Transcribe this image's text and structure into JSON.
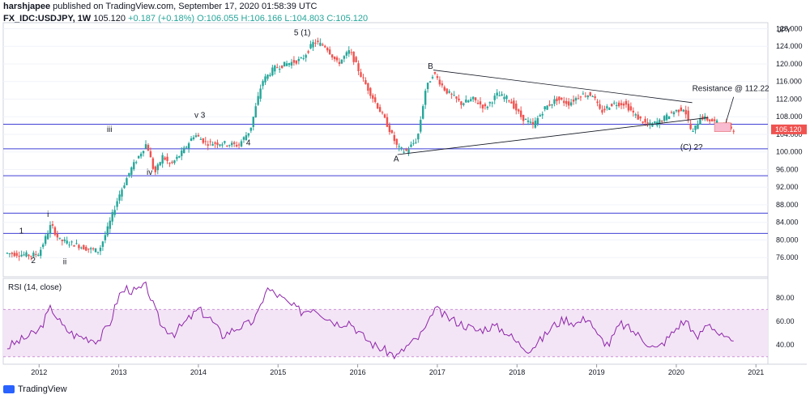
{
  "header": {
    "author": "harshjapee",
    "published": "published on TradingView.com, September 17, 2020 01:58:39 UTC",
    "symbol": "FX_IDC:USDJPY, 1W",
    "last": "105.120",
    "change": "+0.187 (+0.18%)",
    "ohlc": "O:106.055  H:106.166  L:104.803  C:105.120"
  },
  "footer": {
    "brand": "TradingView"
  },
  "colors": {
    "up": "#26a69a",
    "down": "#ef5350",
    "hline": "#3f3fd6",
    "rsi": "#8e24aa",
    "rsi_band": "#f3e5f5"
  },
  "chart_data": [
    {
      "type": "line",
      "title": "",
      "ylabel": "JPY",
      "ylim": [
        72,
        129
      ],
      "yticks": [
        "76.000",
        "80.000",
        "84.000",
        "88.000",
        "92.000",
        "96.000",
        "100.000",
        "104.000",
        "108.000",
        "112.000",
        "116.000",
        "120.000",
        "124.000",
        "128.000"
      ],
      "xticks": [
        "2012",
        "2013",
        "2014",
        "2015",
        "2016",
        "2017",
        "2018",
        "2019",
        "2020",
        "2021"
      ],
      "last_price_label": "105.120",
      "series": [
        {
          "x": [
            2011.6,
            2011.9,
            2012.0,
            2012.15,
            2012.25,
            2012.45,
            2012.6,
            2012.75,
            2012.85,
            2013.0,
            2013.15,
            2013.35,
            2013.45,
            2013.55,
            2013.65,
            2013.8,
            2013.95,
            2014.1,
            2014.3,
            2014.5,
            2014.65,
            2014.8,
            2014.95,
            2015.1,
            2015.3,
            2015.45,
            2015.6,
            2015.75,
            2015.9,
            2016.05,
            2016.2,
            2016.35,
            2016.5,
            2016.6,
            2016.75,
            2016.85,
            2016.95,
            2017.1,
            2017.3,
            2017.45,
            2017.6,
            2017.75,
            2017.9,
            2018.05,
            2018.2,
            2018.35,
            2018.5,
            2018.65,
            2018.8,
            2018.95,
            2019.05,
            2019.2,
            2019.35,
            2019.5,
            2019.65,
            2019.8,
            2019.95,
            2020.1,
            2020.2,
            2020.3,
            2020.45,
            2020.6,
            2020.72
          ],
          "y": [
            77,
            76.5,
            77,
            83.5,
            80,
            79,
            78,
            77.5,
            82,
            90,
            96,
            102,
            95,
            99,
            97,
            100,
            104,
            102,
            102,
            101.5,
            105,
            116,
            119,
            120,
            121,
            125,
            124,
            120,
            123,
            117,
            112,
            107,
            101,
            100,
            103,
            114,
            118,
            114,
            111,
            112,
            110,
            113,
            112,
            108,
            106,
            110,
            112,
            111,
            113,
            113,
            109,
            111,
            111,
            108,
            106,
            107,
            109,
            110,
            104,
            108,
            107,
            106,
            105.1
          ]
        }
      ],
      "hlines": [
        106.3,
        100.7,
        94.6,
        86.1,
        81.5
      ],
      "annotations": [
        "1",
        "2",
        "i",
        "ii",
        "iii",
        "iv",
        "v 3",
        "4",
        "5 (1)",
        "A",
        "B",
        "(C) 2?",
        "Resistance @ 112.22"
      ]
    },
    {
      "type": "line",
      "title": "RSI (14, close)",
      "ylim": [
        25,
        95
      ],
      "yticks": [
        "40.00",
        "60.00",
        "80.00"
      ],
      "band": [
        30,
        70
      ],
      "series": [
        {
          "x": [
            2011.6,
            2011.8,
            2012.0,
            2012.15,
            2012.3,
            2012.45,
            2012.6,
            2012.75,
            2012.9,
            2013.0,
            2013.1,
            2013.2,
            2013.35,
            2013.45,
            2013.55,
            2013.7,
            2013.85,
            2014.0,
            2014.15,
            2014.3,
            2014.5,
            2014.65,
            2014.75,
            2014.85,
            2015.0,
            2015.15,
            2015.3,
            2015.45,
            2015.6,
            2015.75,
            2015.9,
            2016.05,
            2016.2,
            2016.35,
            2016.5,
            2016.6,
            2016.75,
            2016.9,
            2016.95,
            2017.1,
            2017.3,
            2017.5,
            2017.7,
            2017.85,
            2018.0,
            2018.15,
            2018.3,
            2018.45,
            2018.6,
            2018.75,
            2018.9,
            2019.0,
            2019.15,
            2019.3,
            2019.45,
            2019.6,
            2019.75,
            2019.9,
            2020.05,
            2020.15,
            2020.25,
            2020.4,
            2020.55,
            2020.72
          ],
          "y": [
            38,
            45,
            52,
            72,
            55,
            48,
            46,
            44,
            60,
            82,
            88,
            85,
            90,
            70,
            55,
            50,
            60,
            70,
            62,
            48,
            55,
            58,
            66,
            88,
            82,
            74,
            68,
            72,
            64,
            58,
            60,
            48,
            40,
            35,
            30,
            38,
            45,
            58,
            72,
            64,
            58,
            52,
            56,
            52,
            42,
            36,
            44,
            56,
            62,
            58,
            64,
            48,
            40,
            58,
            52,
            44,
            36,
            46,
            58,
            60,
            44,
            60,
            48,
            40
          ]
        }
      ]
    }
  ]
}
